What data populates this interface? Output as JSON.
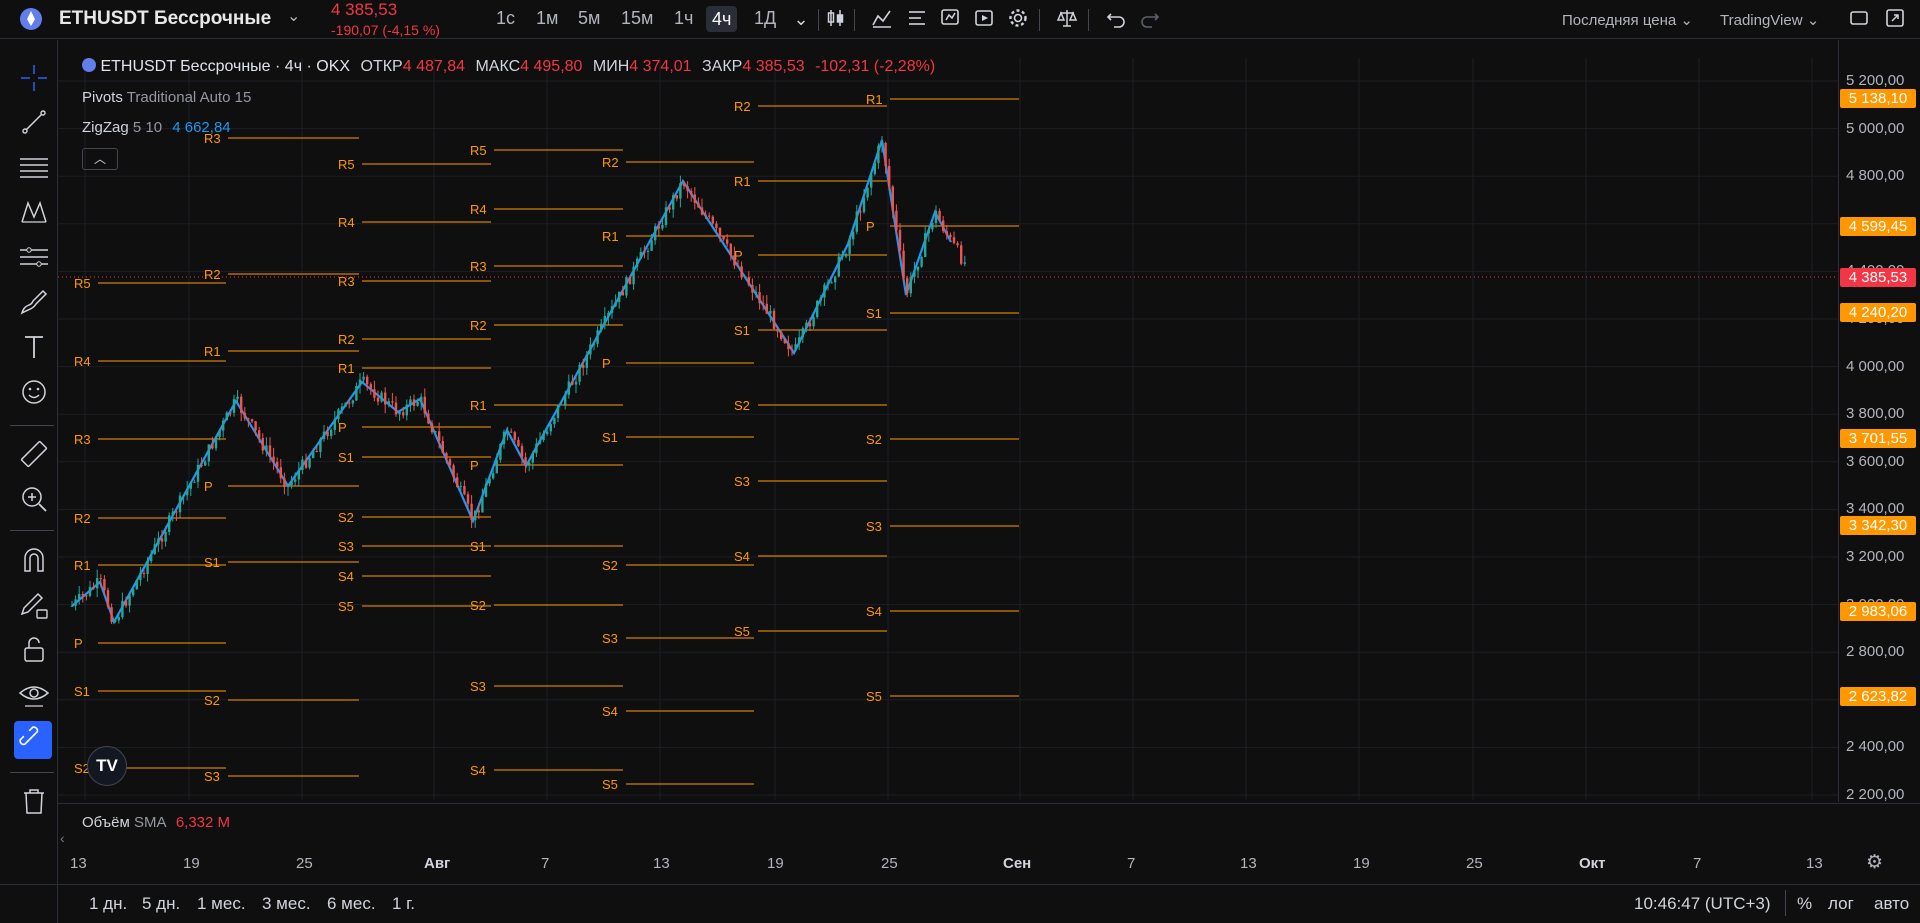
{
  "header": {
    "symbol": "ETHUSDT Бессрочные",
    "price": "4 385,53",
    "change": "-190,07 (-4,15 %)",
    "timeframes": [
      "1с",
      "1м",
      "5м",
      "15м",
      "1ч",
      "4ч",
      "1Д"
    ],
    "active_timeframe": "4ч",
    "price_type": "Последняя цена",
    "source": "TradingView"
  },
  "legend": {
    "title": "ETHUSDT Бессрочные · 4ч · OKX",
    "open_label": "ОТКР",
    "open": "4 487,84",
    "high_label": "МАКС",
    "high": "4 495,80",
    "low_label": "МИН",
    "low": "4 374,01",
    "close_label": "ЗАКР",
    "close": "4 385,53",
    "change": "-102,31 (-2,28%)",
    "pivots_name": "Pivots",
    "pivots_params": "Traditional Auto 15",
    "zigzag_name": "ZigZag",
    "zigzag_params": "5 10",
    "zigzag_value": "4 662,84",
    "volume_name": "Объём",
    "volume_sma": "SMA",
    "volume_value": "6,332 M"
  },
  "price_axis": {
    "ticks": [
      "5 200,00",
      "5 000,00",
      "4 800,00",
      "4 600,00",
      "4 400,00",
      "4 200,00",
      "4 000,00",
      "3 800,00",
      "3 600,00",
      "3 400,00",
      "3 200,00",
      "3 000,00",
      "2 800,00",
      "2 600,00",
      "2 400,00",
      "2 200,00"
    ],
    "badges": [
      {
        "text": "5 138,10",
        "color": "#ff9800"
      },
      {
        "text": "4 599,45",
        "color": "#ff9800"
      },
      {
        "text": "4 385,53",
        "color": "#f23645"
      },
      {
        "text": "4 240,20",
        "color": "#ff9800"
      },
      {
        "text": "3 701,55",
        "color": "#ff9800"
      },
      {
        "text": "3 342,30",
        "color": "#ff9800"
      },
      {
        "text": "2 983,06",
        "color": "#ff9800"
      },
      {
        "text": "2 623,82",
        "color": "#ff9800"
      }
    ]
  },
  "time_axis": {
    "ticks": [
      "13",
      "19",
      "25",
      "Авг",
      "7",
      "13",
      "19",
      "25",
      "Сен",
      "7",
      "13",
      "19",
      "25",
      "Окт",
      "7",
      "13"
    ]
  },
  "bottom": {
    "ranges": [
      "1 дн.",
      "5 дн.",
      "1 мес.",
      "3 мес.",
      "6 мес.",
      "1 г."
    ],
    "time": "10:46:47 (UTC+3)",
    "percent": "%",
    "log": "лог",
    "auto": "авто"
  },
  "pivot_levels": [
    "R5",
    "R4",
    "R3",
    "R2",
    "R1",
    "P",
    "S1",
    "S2",
    "S3",
    "S4",
    "S5"
  ],
  "colors": {
    "pivot": "#ff9800",
    "zigzag": "#2196f3",
    "up": "#26a69a",
    "down": "#ef5350",
    "last_price": "#f23645"
  },
  "icons": {
    "crosshair": "crosshair-icon",
    "trendline": "trendline-icon",
    "fib": "fib-icon",
    "pattern": "pattern-icon",
    "forecast": "forecast-icon",
    "brush": "brush-icon",
    "text": "text-icon",
    "emoji": "emoji-icon",
    "ruler": "ruler-icon",
    "zoom": "zoom-icon",
    "magnet": "magnet-icon",
    "lock": "lock-icon",
    "eye": "eye-icon",
    "link": "link-icon",
    "trash": "trash-icon"
  }
}
